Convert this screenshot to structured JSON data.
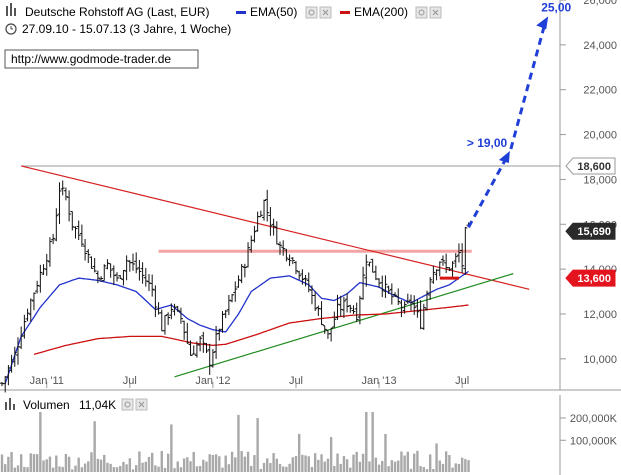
{
  "header": {
    "title": "Deutsche Rohstoff AG (Last, EUR)",
    "range": "27.09.10 - 15.07.13 (3 Jahre, 1 Woche)",
    "source": "http://www.godmode-trader.de",
    "legend": [
      {
        "label": "EMA(50)",
        "color": "#2233cc"
      },
      {
        "label": "EMA(200)",
        "color": "#cc1111"
      }
    ]
  },
  "chart_data": [
    {
      "type": "ohlc-bar",
      "title": "Deutsche Rohstoff AG (Last, EUR)",
      "x_ticks": [
        "Jan '11",
        "Jul",
        "Jan '12",
        "Jul",
        "Jan '13",
        "Jul"
      ],
      "y_ticks": [
        10000,
        12000,
        14000,
        16000,
        18000,
        20000,
        22000,
        24000,
        26000
      ],
      "y_tick_labels": [
        "10,000",
        "12,000",
        "14,000",
        "16,000",
        "18,000",
        "20,000",
        "22,000",
        "24,000",
        "26,000"
      ],
      "ylim": [
        8700,
        26000
      ],
      "weeks": 147,
      "close_keypoints": [
        [
          0,
          8900
        ],
        [
          4,
          10200
        ],
        [
          8,
          12200
        ],
        [
          12,
          13800
        ],
        [
          16,
          15400
        ],
        [
          18,
          17600
        ],
        [
          20,
          17200
        ],
        [
          22,
          16000
        ],
        [
          25,
          15300
        ],
        [
          28,
          14200
        ],
        [
          30,
          13600
        ],
        [
          33,
          14200
        ],
        [
          36,
          13500
        ],
        [
          39,
          14400
        ],
        [
          43,
          13900
        ],
        [
          47,
          13100
        ],
        [
          50,
          11400
        ],
        [
          53,
          12300
        ],
        [
          56,
          11800
        ],
        [
          59,
          10200
        ],
        [
          62,
          10800
        ],
        [
          65,
          9900
        ],
        [
          68,
          11400
        ],
        [
          72,
          12800
        ],
        [
          76,
          14300
        ],
        [
          80,
          16300
        ],
        [
          82,
          17000
        ],
        [
          84,
          16100
        ],
        [
          87,
          15000
        ],
        [
          90,
          14600
        ],
        [
          93,
          13900
        ],
        [
          96,
          13100
        ],
        [
          99,
          12100
        ],
        [
          102,
          11000
        ],
        [
          105,
          12200
        ],
        [
          108,
          12500
        ],
        [
          111,
          12000
        ],
        [
          114,
          14500
        ],
        [
          117,
          13700
        ],
        [
          120,
          13100
        ],
        [
          123,
          12600
        ],
        [
          126,
          12200
        ],
        [
          128,
          12600
        ],
        [
          131,
          11600
        ],
        [
          134,
          13700
        ],
        [
          137,
          14400
        ],
        [
          139,
          14000
        ],
        [
          141,
          14200
        ],
        [
          143,
          14700
        ],
        [
          144,
          14200
        ],
        [
          145,
          15600
        ],
        [
          146,
          15690
        ]
      ],
      "ema50_keypoints": [
        [
          1,
          8900
        ],
        [
          6,
          11000
        ],
        [
          12,
          12300
        ],
        [
          18,
          13300
        ],
        [
          24,
          13600
        ],
        [
          30,
          13500
        ],
        [
          36,
          13300
        ],
        [
          42,
          13000
        ],
        [
          48,
          12200
        ],
        [
          53,
          12400
        ],
        [
          58,
          11800
        ],
        [
          62,
          11500
        ],
        [
          66,
          11300
        ],
        [
          70,
          11200
        ],
        [
          74,
          12000
        ],
        [
          78,
          13000
        ],
        [
          84,
          13600
        ],
        [
          90,
          13700
        ],
        [
          96,
          13300
        ],
        [
          100,
          12700
        ],
        [
          104,
          12600
        ],
        [
          108,
          12900
        ],
        [
          112,
          13400
        ],
        [
          118,
          13200
        ],
        [
          123,
          12800
        ],
        [
          128,
          12500
        ],
        [
          132,
          12800
        ],
        [
          136,
          13100
        ],
        [
          140,
          13300
        ],
        [
          144,
          13700
        ],
        [
          146,
          13900
        ]
      ],
      "ema200_keypoints": [
        [
          10,
          10200
        ],
        [
          20,
          10600
        ],
        [
          30,
          10900
        ],
        [
          40,
          11000
        ],
        [
          50,
          11000
        ],
        [
          60,
          10700
        ],
        [
          66,
          10600
        ],
        [
          70,
          10650
        ],
        [
          80,
          11100
        ],
        [
          90,
          11600
        ],
        [
          100,
          11800
        ],
        [
          110,
          11950
        ],
        [
          120,
          12000
        ],
        [
          130,
          12150
        ],
        [
          140,
          12300
        ],
        [
          146,
          12400
        ]
      ],
      "trendlines": [
        {
          "color": "#d62020",
          "points": [
            [
              6,
              18600
            ],
            [
              165,
              13100
            ]
          ]
        },
        {
          "color": "#1e8c1e",
          "points": [
            [
              54,
              9200
            ],
            [
              160,
              13800
            ]
          ]
        }
      ],
      "resistance_level": 18600,
      "resistance_band": {
        "from": 49,
        "to": 147,
        "value": 14800
      },
      "support_mark": {
        "from": 137,
        "to": 143,
        "value": 13600
      },
      "projection": {
        "points": [
          [
            146,
            15690
          ],
          [
            158,
            19000
          ],
          [
            170,
            25000
          ]
        ],
        "labels": [
          "> 19,00",
          "25,00"
        ]
      },
      "price_tags": [
        {
          "value": 18600,
          "label": "18,600",
          "bg": "#ffffff",
          "fg": "#333333",
          "border": "#999999"
        },
        {
          "value": 15690,
          "label": "15,690",
          "bg": "#2a2a2a",
          "fg": "#ffffff",
          "border": "#2a2a2a"
        },
        {
          "value": 13600,
          "label": "13,600",
          "bg": "#e4141e",
          "fg": "#ffffff",
          "border": "#e4141e"
        }
      ]
    },
    {
      "type": "bar",
      "title": "Volumen",
      "current_label": "11,04K",
      "y_tick_labels": [
        "200,000K",
        "100,000K"
      ],
      "y_ticks": [
        200000,
        100000
      ],
      "ylim": [
        0,
        290000
      ],
      "volume_seed_peaks": [
        [
          12,
          210000
        ],
        [
          29,
          160000
        ],
        [
          53,
          150000
        ],
        [
          74,
          180000
        ],
        [
          80,
          170000
        ],
        [
          93,
          120000
        ],
        [
          103,
          110000
        ],
        [
          114,
          240000
        ],
        [
          116,
          230000
        ],
        [
          120,
          120000
        ],
        [
          136,
          90000
        ]
      ]
    }
  ]
}
